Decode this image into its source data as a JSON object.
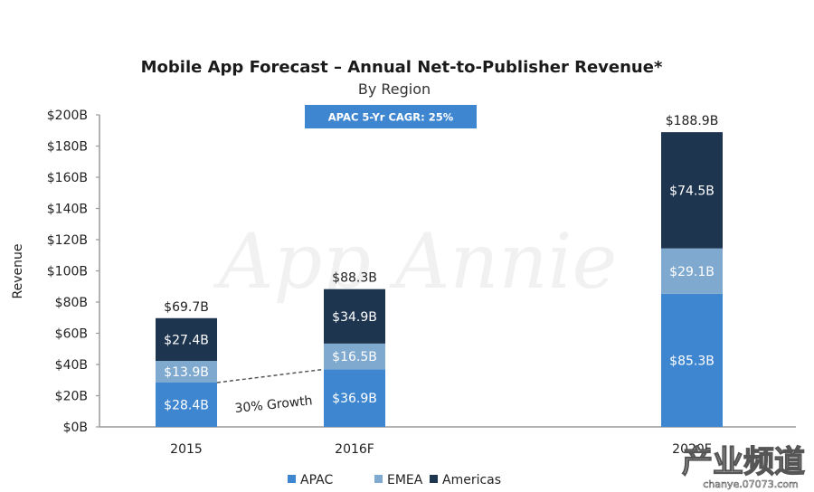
{
  "chart_data": {
    "type": "bar",
    "stacked": true,
    "title": "Mobile App Forecast – Annual Net-to-Publisher Revenue*",
    "subtitle": "By Region",
    "badge": "APAC 5-Yr CAGR: 25%",
    "xlabel": "",
    "ylabel": "Revenue",
    "ylim": [
      0,
      200
    ],
    "yticks": [
      0,
      20,
      40,
      60,
      80,
      100,
      120,
      140,
      160,
      180,
      200
    ],
    "ytick_labels": [
      "$0B",
      "$20B",
      "$40B",
      "$60B",
      "$80B",
      "$100B",
      "$120B",
      "$140B",
      "$160B",
      "$180B",
      "$200B"
    ],
    "categories": [
      "2015",
      "2016F",
      "2020F"
    ],
    "series": [
      {
        "name": "APAC",
        "color": "#3f86d1",
        "values": [
          28.4,
          36.9,
          85.3
        ],
        "labels": [
          "$28.4B",
          "$36.9B",
          "$85.3B"
        ]
      },
      {
        "name": "EMEA",
        "color": "#7fa9cf",
        "values": [
          13.9,
          16.5,
          29.1
        ],
        "labels": [
          "$13.9B",
          "$16.5B",
          "$29.1B"
        ]
      },
      {
        "name": "Americas",
        "color": "#1e3550",
        "values": [
          27.4,
          34.9,
          74.5
        ],
        "labels": [
          "$27.4B",
          "$34.9B",
          "$74.5B"
        ]
      }
    ],
    "totals": [
      69.7,
      88.3,
      188.9
    ],
    "total_labels": [
      "$69.7B",
      "$88.3B",
      "$188.9B"
    ],
    "annotation": {
      "text": "30% Growth",
      "from_category": "2015",
      "to_category": "2016F",
      "series": "APAC"
    },
    "legend": {
      "position": "bottom-center",
      "entries": [
        "APAC",
        "EMEA",
        "Americas"
      ]
    },
    "grid": false
  },
  "watermarks": {
    "center": "App Annie",
    "corner_main": "产业频道",
    "corner_sub": "chanye.07073.com"
  },
  "colors": {
    "badge": "#3f86d1",
    "axis": "#9a9a9a"
  }
}
